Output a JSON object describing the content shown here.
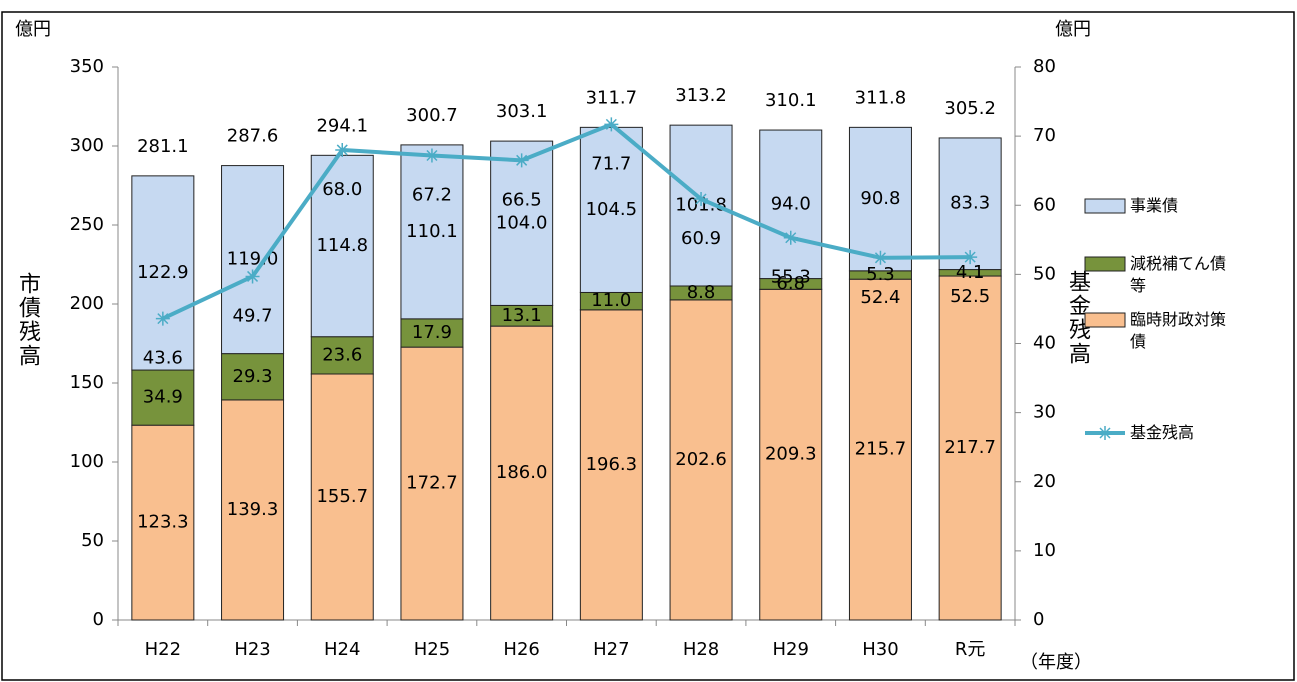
{
  "chart_data": {
    "type": "bar",
    "stacked": true,
    "y_unit_left": "億円",
    "y_unit_right": "億円",
    "y_axis_title": "市債残高",
    "y2_axis_title": "基金残高",
    "x_unit": "（年度）",
    "categories": [
      "H22",
      "H23",
      "H24",
      "H25",
      "H26",
      "H27",
      "H28",
      "H29",
      "H30",
      "R元"
    ],
    "series": [
      {
        "name": "臨時財政対策債",
        "color": "#f9bf8f",
        "values": [
          123.3,
          139.3,
          155.7,
          172.7,
          186.0,
          196.3,
          202.6,
          209.3,
          215.7,
          217.7
        ],
        "value_labels": [
          "123.3",
          "139.3",
          "155.7",
          "172.7",
          "186.0",
          "196.3",
          "202.6",
          "209.3",
          "215.7",
          "217.7"
        ]
      },
      {
        "name": "減税補てん債等",
        "color": "#77933c",
        "values": [
          34.9,
          29.3,
          23.6,
          17.9,
          13.1,
          11.0,
          8.8,
          6.8,
          5.3,
          4.1
        ],
        "value_labels": [
          "34.9",
          "29.3",
          "23.6",
          "17.9",
          "13.1",
          "11.0",
          "8.8",
          "6.8",
          "5.3",
          "4.1"
        ]
      },
      {
        "name": "事業債",
        "color": "#c6d9f1",
        "values": [
          122.9,
          119.0,
          114.8,
          110.1,
          104.0,
          104.5,
          101.8,
          94.0,
          90.8,
          83.3
        ],
        "value_labels": [
          "122.9",
          "119.0",
          "114.8",
          "110.1",
          "104.0",
          "104.5",
          "101.8",
          "94.0",
          "90.8",
          "83.3"
        ]
      },
      {
        "name": "基金残高",
        "type": "line",
        "axis": "y2",
        "color": "#4bacc6",
        "values": [
          43.6,
          49.7,
          68.0,
          67.2,
          66.5,
          71.7,
          60.9,
          55.3,
          52.4,
          52.5
        ],
        "value_labels": [
          "43.6",
          "49.7",
          "68.0",
          "67.2",
          "66.5",
          "71.7",
          "60.9",
          "55.3",
          "52.4",
          "52.5"
        ]
      }
    ],
    "totals": [
      281.1,
      287.6,
      294.1,
      300.7,
      303.1,
      311.7,
      313.2,
      310.1,
      311.8,
      305.2
    ],
    "ylim": [
      0,
      350
    ],
    "yticks": [
      0,
      50,
      100,
      150,
      200,
      250,
      300,
      350
    ],
    "y2lim": [
      0,
      80
    ],
    "y2ticks": [
      0,
      10,
      20,
      30,
      40,
      50,
      60,
      70,
      80
    ]
  }
}
